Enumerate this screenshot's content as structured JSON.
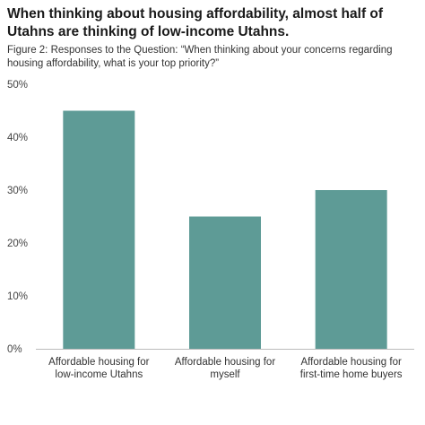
{
  "header": {
    "title": "When thinking about housing affordability, almost half of Utahns are thinking of low-income Utahns.",
    "subtitle": "Figure 2: Responses to the Question: “When thinking about your concerns regarding housing affordability, what is your top priority?”"
  },
  "colors": {
    "bar": "#5e9b96",
    "axis": "#bbbbbb",
    "tick_label": "#444444"
  },
  "chart_data": {
    "type": "bar",
    "categories": [
      [
        "Affordable housing for",
        "low-income Utahns"
      ],
      [
        "Affordable housing for",
        "myself"
      ],
      [
        "Affordable housing for",
        "first-time home buyers"
      ]
    ],
    "values": [
      45,
      25,
      30
    ],
    "ylim": [
      0,
      50
    ],
    "yticks": [
      "0%",
      "10%",
      "20%",
      "30%",
      "40%",
      "50%"
    ],
    "grid": false
  }
}
